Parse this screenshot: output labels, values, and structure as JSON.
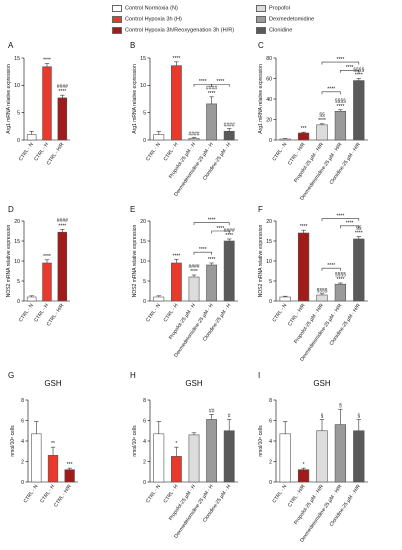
{
  "legend": {
    "items": [
      {
        "label": "Control Normoxia (N)",
        "color": "#ffffff"
      },
      {
        "label": "Control Hypoxia 3h (H)",
        "color": "#e8392c"
      },
      {
        "label": "Control Hypoxia 3h/Reoxygenation 3h (H/R)",
        "color": "#a11b1b"
      },
      {
        "label": "Propofol",
        "color": "#dcdcdc"
      },
      {
        "label": "Dexmedetomidine",
        "color": "#9a9a9a"
      },
      {
        "label": "Clonidine",
        "color": "#5a5a5a"
      }
    ]
  },
  "chart_data": [
    {
      "panel": "A",
      "type": "bar",
      "title": "",
      "ylabel": "Arg1 mRNA relative expression",
      "ylim": [
        0,
        15
      ],
      "yticks": [
        0,
        5,
        10,
        15
      ],
      "categories": [
        "CTRL - N",
        "CTRL - H",
        "CTRL - H/R"
      ],
      "values": [
        1.0,
        13.4,
        7.7
      ],
      "errors": [
        0.6,
        0.6,
        0.5
      ],
      "colors": [
        "#ffffff",
        "#e8392c",
        "#a11b1b"
      ],
      "labels": [
        "",
        "****",
        "####\n****"
      ],
      "brackets": []
    },
    {
      "panel": "B",
      "type": "bar",
      "title": "",
      "ylabel": "Arg1 mRNA relative expression",
      "ylim": [
        0,
        15
      ],
      "yticks": [
        0,
        5,
        10,
        15
      ],
      "categories": [
        "CTRL - N",
        "CTRL - H",
        "Propofol-25 µM - H",
        "Dexmedetomidine-25 µM - H",
        "Clonidine-25 µM - H"
      ],
      "values": [
        1.0,
        13.6,
        0.3,
        6.6,
        1.6
      ],
      "errors": [
        0.6,
        0.7,
        0.2,
        1.3,
        0.5
      ],
      "colors": [
        "#ffffff",
        "#e8392c",
        "#dcdcdc",
        "#9a9a9a",
        "#5a5a5a"
      ],
      "labels": [
        "",
        "****",
        "####",
        "####\n****",
        "####"
      ],
      "brackets": [
        {
          "from": 2,
          "to": 3,
          "text": "****",
          "level": 10.2
        },
        {
          "from": 3,
          "to": 4,
          "text": "****",
          "level": 10.2
        }
      ]
    },
    {
      "panel": "C",
      "type": "bar",
      "title": "",
      "ylabel": "Arg1 mRNA relative expression",
      "ylim": [
        0,
        80
      ],
      "yticks": [
        0,
        20,
        40,
        60,
        80
      ],
      "categories": [
        "CTRL - N",
        "CTRL - H/R",
        "Propofol-25 µM - H/R",
        "Dexmedetomidine-25 µM - H/R",
        "Clonidine-25 µM - H/R"
      ],
      "values": [
        1.0,
        6.8,
        14.8,
        28.0,
        58.0
      ],
      "errors": [
        0.4,
        0.8,
        1.0,
        1.5,
        2.0
      ],
      "colors": [
        "#ffffff",
        "#a11b1b",
        "#dcdcdc",
        "#9a9a9a",
        "#5a5a5a"
      ],
      "labels": [
        "",
        "***",
        "§§\n****",
        "§§§§\n****",
        "§§§§\n****"
      ],
      "brackets": [
        {
          "from": 2,
          "to": 3,
          "text": "****",
          "level": 47
        },
        {
          "from": 3,
          "to": 4,
          "text": "****",
          "level": 68
        },
        {
          "from": 2,
          "to": 4,
          "text": "****",
          "level": 76
        }
      ]
    },
    {
      "panel": "D",
      "type": "bar",
      "title": "",
      "ylabel": "NOS2 mRNA relative expression",
      "ylim": [
        0,
        20
      ],
      "yticks": [
        0,
        5,
        10,
        15,
        20
      ],
      "categories": [
        "CTRL - N",
        "CTRL - H",
        "CTRL - H/R"
      ],
      "values": [
        1.0,
        9.5,
        17.2
      ],
      "errors": [
        0.3,
        0.8,
        0.7
      ],
      "colors": [
        "#ffffff",
        "#e8392c",
        "#a11b1b"
      ],
      "labels": [
        "",
        "****",
        "####\n****"
      ],
      "brackets": []
    },
    {
      "panel": "E",
      "type": "bar",
      "title": "",
      "ylabel": "NOS2 mRNA relative expression",
      "ylim": [
        0,
        20
      ],
      "yticks": [
        0,
        5,
        10,
        15,
        20
      ],
      "categories": [
        "CTRL - N",
        "CTRL - H",
        "Propofol-25 µM - H",
        "Dexmedetomidine-25 µM - H",
        "Clonidine-25 µM - H"
      ],
      "values": [
        1.0,
        9.5,
        6.0,
        9.0,
        15.0
      ],
      "errors": [
        0.3,
        0.9,
        0.5,
        0.5,
        0.5
      ],
      "colors": [
        "#ffffff",
        "#e8392c",
        "#dcdcdc",
        "#9a9a9a",
        "#5a5a5a"
      ],
      "labels": [
        "",
        "****",
        "####\n****",
        "****",
        "####\n****"
      ],
      "brackets": [
        {
          "from": 2,
          "to": 3,
          "text": "****",
          "level": 12.2
        },
        {
          "from": 3,
          "to": 4,
          "text": "****",
          "level": 17.5
        },
        {
          "from": 2,
          "to": 4,
          "text": "****",
          "level": 19.6
        }
      ]
    },
    {
      "panel": "F",
      "type": "bar",
      "title": "",
      "ylabel": "NOS2 mRNA relative expression",
      "ylim": [
        0,
        20
      ],
      "yticks": [
        0,
        5,
        10,
        15,
        20
      ],
      "categories": [
        "CTRL - N",
        "CTRL - H/R",
        "Propofol-25 µM - H/R",
        "Dexmedetomidine-25 µM - H/R",
        "Clonidine-25 µM - H/R"
      ],
      "values": [
        1.0,
        17.0,
        1.5,
        4.2,
        15.5
      ],
      "errors": [
        0.2,
        0.7,
        0.3,
        0.3,
        0.6
      ],
      "colors": [
        "#ffffff",
        "#a11b1b",
        "#dcdcdc",
        "#9a9a9a",
        "#5a5a5a"
      ],
      "labels": [
        "",
        "****",
        "§§§§",
        "§§§§\n****",
        "§§\n****"
      ],
      "brackets": [
        {
          "from": 2,
          "to": 3,
          "text": "****",
          "level": 8.2
        },
        {
          "from": 3,
          "to": 4,
          "text": "****",
          "level": 18.8
        },
        {
          "from": 2,
          "to": 4,
          "text": "****",
          "level": 20.6
        }
      ]
    },
    {
      "panel": "G",
      "type": "bar",
      "title": "GSH",
      "ylabel": "nmol/10⁶ cells",
      "ylim": [
        0,
        8
      ],
      "yticks": [
        0,
        2,
        4,
        6,
        8
      ],
      "categories": [
        "CTRL - N",
        "CTRL - H",
        "CTRL - H/R"
      ],
      "values": [
        4.7,
        2.6,
        1.2
      ],
      "errors": [
        1.2,
        0.8,
        0.15
      ],
      "colors": [
        "#ffffff",
        "#e8392c",
        "#a11b1b"
      ],
      "labels": [
        "",
        "**",
        "***"
      ],
      "brackets": []
    },
    {
      "panel": "H",
      "type": "bar",
      "title": "GSH",
      "ylabel": "nmol/10⁶ cells",
      "ylim": [
        0,
        8
      ],
      "yticks": [
        0,
        2,
        4,
        6,
        8
      ],
      "categories": [
        "CTRL - N",
        "CTRL - H",
        "Propofol-25 µM - H",
        "Dexmedetomidine-25 µM - H",
        "Clonidine-25 µM - H"
      ],
      "values": [
        4.7,
        2.5,
        4.6,
        6.1,
        5.0
      ],
      "errors": [
        1.2,
        0.9,
        0.2,
        0.5,
        1.1
      ],
      "colors": [
        "#ffffff",
        "#e8392c",
        "#dcdcdc",
        "#9a9a9a",
        "#5a5a5a"
      ],
      "labels": [
        "",
        "*",
        "",
        "##",
        "#"
      ],
      "brackets": []
    },
    {
      "panel": "I",
      "type": "bar",
      "title": "GSH",
      "ylabel": "nmol/10⁶ cells",
      "ylim": [
        0,
        8
      ],
      "yticks": [
        0,
        2,
        4,
        6,
        8
      ],
      "categories": [
        "CTRL - N",
        "CTRL - H/R",
        "Propofol-25 µM - H/R",
        "Dexmedetomidine-25 µM - H/R",
        "Clonidine-25 µM - H/R"
      ],
      "values": [
        4.7,
        1.2,
        5.0,
        5.6,
        5.0
      ],
      "errors": [
        1.2,
        0.15,
        1.1,
        1.5,
        1.1
      ],
      "colors": [
        "#ffffff",
        "#a11b1b",
        "#dcdcdc",
        "#9a9a9a",
        "#5a5a5a"
      ],
      "labels": [
        "",
        "*",
        "§",
        "§",
        "§"
      ],
      "brackets": []
    }
  ]
}
